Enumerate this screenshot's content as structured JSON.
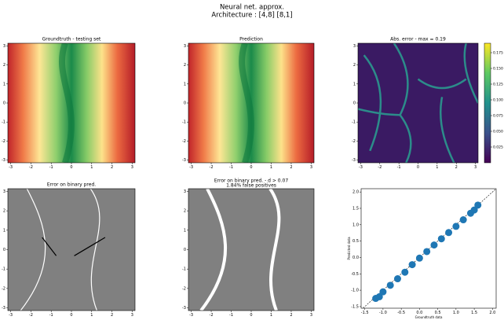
{
  "title": "Neural net. approx.",
  "subtitle": "Architecture : [4,8] [8,1]",
  "chart_data": [
    {
      "type": "heatmap",
      "title": "Groundtruth - testing set",
      "colormap": "RdYlGn",
      "xlim": [
        -3.14,
        3.14
      ],
      "ylim": [
        -3.14,
        3.14
      ],
      "xticks": [
        -3,
        -2,
        -1,
        0,
        1,
        2,
        3
      ],
      "yticks": [
        -3,
        -2,
        -1,
        0,
        1,
        2,
        3
      ]
    },
    {
      "type": "heatmap",
      "title": "Prediction",
      "colormap": "RdYlGn",
      "xlim": [
        -3.14,
        3.14
      ],
      "ylim": [
        -3.14,
        3.14
      ],
      "xticks": [
        -3,
        -2,
        -1,
        0,
        1,
        2,
        3
      ],
      "yticks": [
        -3,
        -2,
        -1,
        0,
        1,
        2,
        3
      ]
    },
    {
      "type": "heatmap",
      "title": "Abs. error - max = 0.19",
      "colormap": "viridis",
      "xlim": [
        -3.14,
        3.14
      ],
      "ylim": [
        -3.14,
        3.14
      ],
      "xticks": [
        -3,
        -2,
        -1,
        0,
        1,
        2,
        3
      ],
      "yticks": [
        -3,
        -2,
        -1,
        0,
        1,
        2,
        3
      ],
      "clim": [
        0,
        0.19
      ],
      "cticks": [
        0.025,
        {
          "value": 0.05,
          "label": "0.050"
        },
        0.075,
        {
          "value": 0.1,
          "label": "0.100"
        },
        0.125,
        {
          "value": 0.15,
          "label": "0.150"
        },
        0.175
      ]
    },
    {
      "type": "heatmap",
      "title": "Error on binary pred.",
      "colormap": "gray",
      "xlim": [
        -3.14,
        3.14
      ],
      "ylim": [
        -3.14,
        3.14
      ],
      "xticks": [
        -3,
        -2,
        -1,
        0,
        1,
        2,
        3
      ],
      "yticks": [
        -3,
        -2,
        -1,
        0,
        1,
        2,
        3
      ]
    },
    {
      "type": "heatmap",
      "title": "Error on binary pred. - d > 0.07",
      "subtitle": "1.84% false positives",
      "colormap": "gray",
      "xlim": [
        -3.14,
        3.14
      ],
      "ylim": [
        -3.14,
        3.14
      ],
      "xticks": [
        -3,
        -2,
        -1,
        0,
        1,
        2,
        3
      ],
      "yticks": [
        -3,
        -2,
        -1,
        0,
        1,
        2,
        3
      ]
    },
    {
      "type": "scatter",
      "xlabel": "Groundtruth data",
      "ylabel": "Predicted data",
      "color": "#1f77b4",
      "x": [
        -1.2,
        -1.1,
        -1.0,
        -0.8,
        -0.6,
        -0.4,
        -0.2,
        0.0,
        0.2,
        0.4,
        0.6,
        0.8,
        1.0,
        1.2,
        1.4,
        1.5,
        1.6
      ],
      "y": [
        -1.25,
        -1.2,
        -1.05,
        -0.85,
        -0.65,
        -0.45,
        -0.22,
        -0.02,
        0.18,
        0.38,
        0.57,
        0.76,
        0.95,
        1.15,
        1.35,
        1.45,
        1.6
      ],
      "xlim": [
        -1.6,
        2.1
      ],
      "ylim": [
        -1.55,
        2.1
      ],
      "xticks": [
        -1.5,
        {
          "value": -1,
          "label": "-1.0"
        },
        -0.5,
        {
          "value": 0,
          "label": "0.0"
        },
        0.5,
        {
          "value": 1,
          "label": "1.0"
        },
        1.5,
        {
          "value": 2,
          "label": "2.0"
        }
      ],
      "yticks": [
        -1.5,
        {
          "value": -1,
          "label": "-1.0"
        },
        -0.5,
        {
          "value": 0,
          "label": "0.0"
        },
        0.5,
        {
          "value": 1,
          "label": "1.0"
        },
        1.5,
        {
          "value": 2,
          "label": "2.0"
        }
      ]
    }
  ]
}
